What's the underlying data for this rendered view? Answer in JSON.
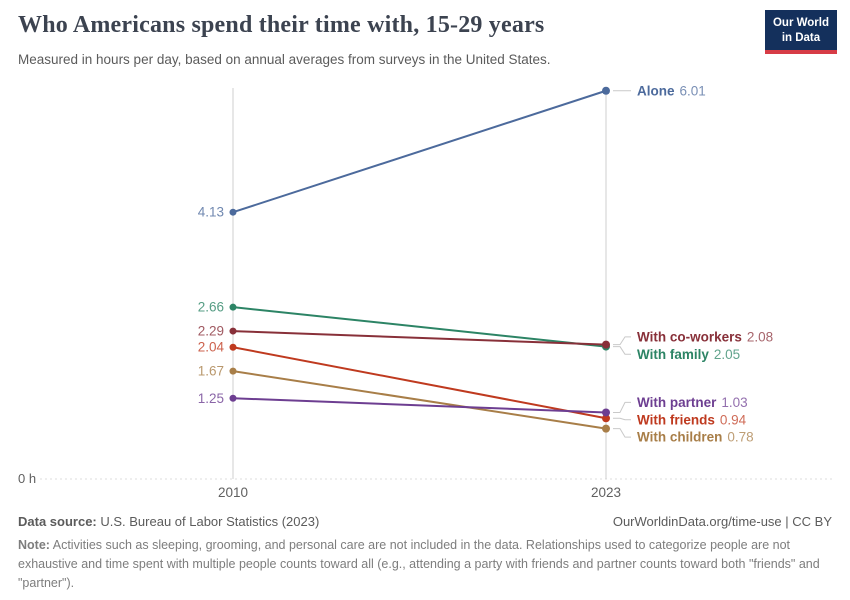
{
  "header": {
    "title": "Who Americans spend their time with, 15-29 years",
    "subtitle": "Measured in hours per day, based on annual averages from surveys in the United States."
  },
  "logo": {
    "line1": "Our World",
    "line2": "in Data",
    "background_color": "#14305C",
    "accent_color": "#D73C46"
  },
  "chart_data": {
    "type": "line",
    "variant": "slope",
    "x": [
      "2010",
      "2023"
    ],
    "categories": [
      "2010",
      "2023"
    ],
    "series": [
      {
        "name": "Alone",
        "values": [
          4.13,
          6.01
        ],
        "color": "#4C6A9C"
      },
      {
        "name": "With family",
        "values": [
          2.66,
          2.05
        ],
        "color": "#2C8465"
      },
      {
        "name": "With co-workers",
        "values": [
          2.29,
          2.08
        ],
        "color": "#883039"
      },
      {
        "name": "With friends",
        "values": [
          2.04,
          0.94
        ],
        "color": "#BF3A1F"
      },
      {
        "name": "With children",
        "values": [
          1.67,
          0.78
        ],
        "color": "#A87E48"
      },
      {
        "name": "With partner",
        "values": [
          1.25,
          1.03
        ],
        "color": "#6D3E91"
      }
    ],
    "ylabel_zero": "0 h",
    "ylim": [
      0,
      6.2
    ],
    "grid": "zero-baseline-dotted-only",
    "legend_position": "inline-right-labels",
    "axis_color": "#cfcfcf",
    "tick_label_color": "#606060"
  },
  "footer": {
    "source_label": "Data source:",
    "source_text": " U.S. Bureau of Labor Statistics (2023)",
    "attribution": "OurWorldinData.org/time-use | CC BY",
    "note_label": "Note:",
    "note_text": " Activities such as sleeping, grooming, and personal care are not included in the data. Relationships used to categorize people are not exhaustive and time spent with multiple people counts toward all (e.g., attending a party with friends and partner counts toward both \"friends\" and \"partner\")."
  }
}
